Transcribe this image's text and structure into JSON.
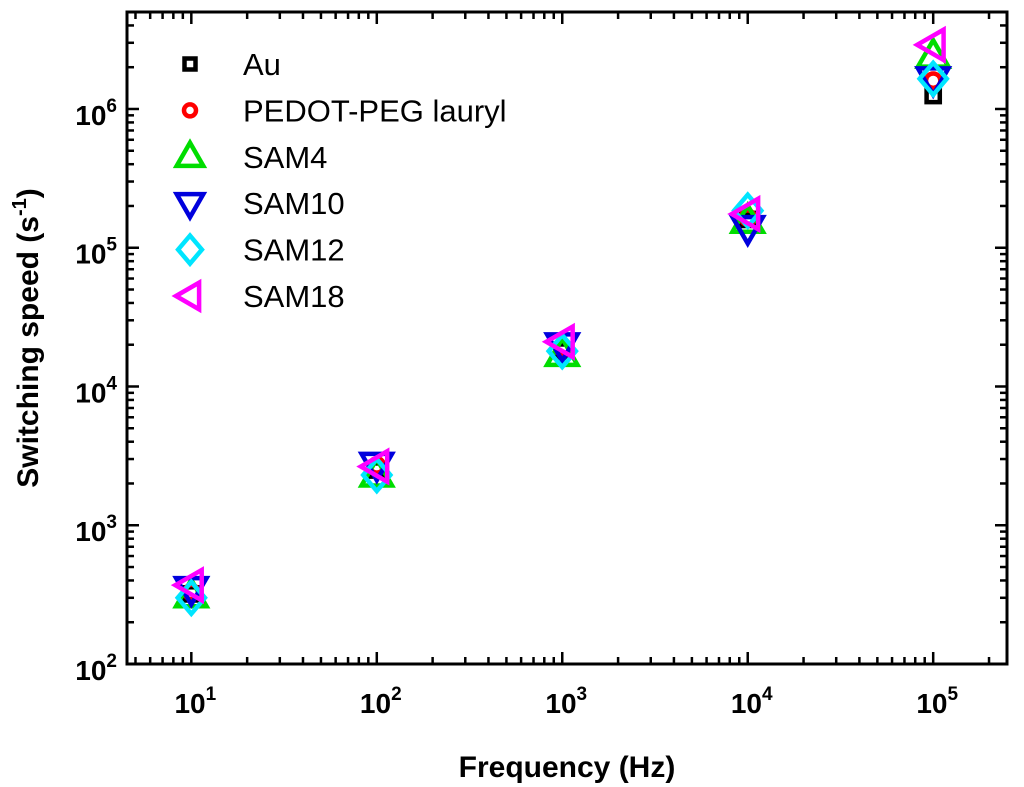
{
  "chart_data": {
    "type": "scatter",
    "x_scale": "log",
    "y_scale": "log",
    "xlabel": "Frequency (Hz)",
    "ylabel_main": "Switching speed (s",
    "ylabel_sup": "-1",
    "ylabel_close": ")",
    "xlim": [
      4.5,
      250000
    ],
    "ylim": [
      100,
      5000000
    ],
    "x_ticks": [
      {
        "value": 10,
        "base": "10",
        "exp": "1"
      },
      {
        "value": 100,
        "base": "10",
        "exp": "2"
      },
      {
        "value": 1000,
        "base": "10",
        "exp": "3"
      },
      {
        "value": 10000,
        "base": "10",
        "exp": "4"
      },
      {
        "value": 100000,
        "base": "10",
        "exp": "5"
      }
    ],
    "y_ticks": [
      {
        "value": 100,
        "base": "10",
        "exp": "2"
      },
      {
        "value": 1000,
        "base": "10",
        "exp": "3"
      },
      {
        "value": 10000,
        "base": "10",
        "exp": "4"
      },
      {
        "value": 100000,
        "base": "10",
        "exp": "5"
      },
      {
        "value": 1000000,
        "base": "10",
        "exp": "6"
      }
    ],
    "grid": false,
    "legend_position": "top-left",
    "series": [
      {
        "name": "Au",
        "marker": "square",
        "color": "#000000",
        "x": [
          10,
          100,
          1000,
          10000,
          100000
        ],
        "y": [
          320,
          2500,
          18000,
          160000,
          1250000
        ]
      },
      {
        "name": "PEDOT-PEG lauryl",
        "marker": "circle",
        "color": "#ff0000",
        "x": [
          10,
          100,
          1000,
          10000,
          100000
        ],
        "y": [
          330,
          2700,
          19000,
          165000,
          1600000
        ]
      },
      {
        "name": "SAM4",
        "marker": "triangle-up",
        "color": "#00dd00",
        "x": [
          10,
          100,
          1000,
          10000,
          100000
        ],
        "y": [
          310,
          2300,
          17000,
          155000,
          2400000
        ]
      },
      {
        "name": "SAM10",
        "marker": "triangle-down",
        "color": "#0000dd",
        "x": [
          10,
          100,
          1000,
          10000,
          100000
        ],
        "y": [
          350,
          2750,
          20000,
          140000,
          1650000
        ]
      },
      {
        "name": "SAM12",
        "marker": "diamond",
        "color": "#00e5ff",
        "x": [
          10,
          100,
          1000,
          10000,
          100000
        ],
        "y": [
          300,
          2300,
          18000,
          185000,
          1650000
        ]
      },
      {
        "name": "SAM18",
        "marker": "triangle-left",
        "color": "#ff00ff",
        "x": [
          10,
          100,
          1000,
          10000,
          100000
        ],
        "y": [
          370,
          2650,
          21000,
          175000,
          2900000
        ]
      }
    ]
  }
}
